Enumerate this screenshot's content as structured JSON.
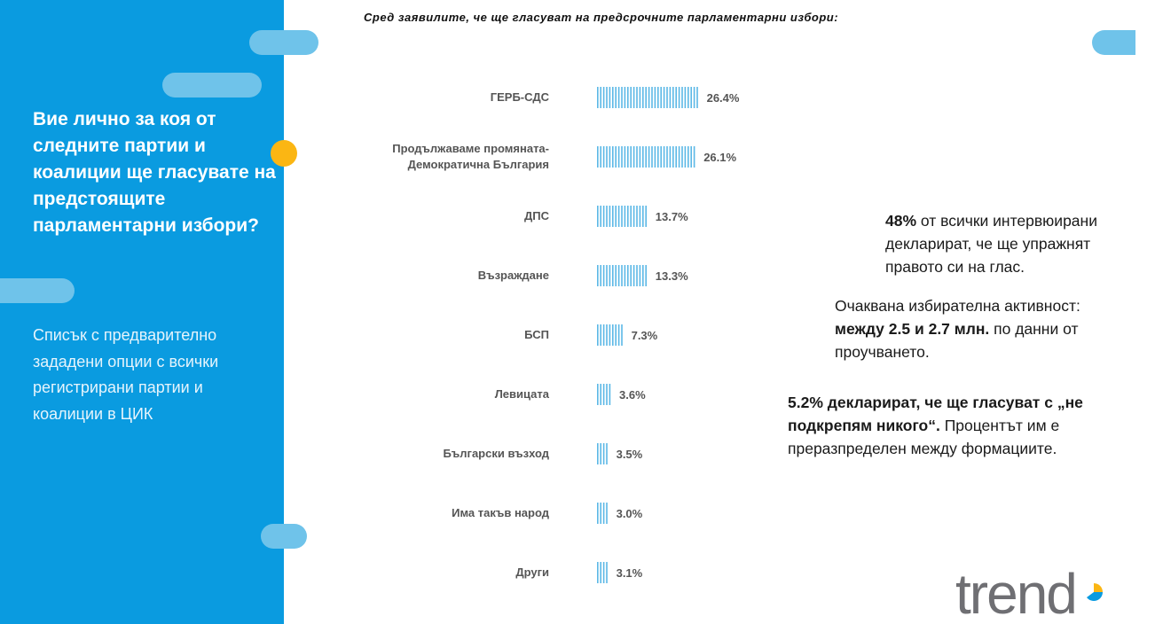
{
  "left": {
    "question": "Вие лично за коя от следните партии и коалиции ще гласувате на предстоящите парламентарни избори?",
    "note": "Списък с предварително зададени опции с всички регистрирани партии и коалиции в ЦИК"
  },
  "subtitle": "Сред заявилите, че ще гласуват на  предсрочните парламентарни избори:",
  "chart_data": {
    "type": "bar",
    "orientation": "horizontal",
    "title": "Сред заявилите, че ще гласуват на  предсрочните парламентарни избори:",
    "categories": [
      [
        "ГЕРБ-СДС"
      ],
      [
        "Продължаваме промяната-",
        "Демократична България"
      ],
      [
        "ДПС"
      ],
      [
        "Възраждане"
      ],
      [
        "БСП"
      ],
      [
        "Левицата"
      ],
      [
        "Български възход"
      ],
      [
        "Има такъв народ"
      ],
      [
        "Други"
      ]
    ],
    "values": [
      26.4,
      26.1,
      13.7,
      13.3,
      7.3,
      3.6,
      3.5,
      3.0,
      3.1
    ],
    "value_labels": [
      "26.4%",
      "26.1%",
      "13.7%",
      "13.3%",
      "7.3%",
      "3.6%",
      "3.5%",
      "3.0%",
      "3.1%"
    ],
    "unit": "%",
    "xlim": [
      0,
      30
    ],
    "bar_color": "#5bb8e6"
  },
  "info": {
    "p1_bold": "48%",
    "p1_rest": " от всички интервюирани декларират, че ще упражнят правото си на глас.",
    "p2_start": "Очаквана избирателна активност: ",
    "p2_bold": "между 2.5 и 2.7 млн.",
    "p2_end": " по данни от проучването.",
    "p3_bold": "5.2% декларират, че ще гласуват с „не подкрепям никого“.",
    "p3_rest": " Процентът им е преразпределен между формациите."
  },
  "logo": {
    "text": "trend"
  },
  "colors": {
    "left_panel": "#0a9be0",
    "pill": "#6fc3ea",
    "dot": "#fbb613",
    "bar": "#5bb8e6"
  }
}
